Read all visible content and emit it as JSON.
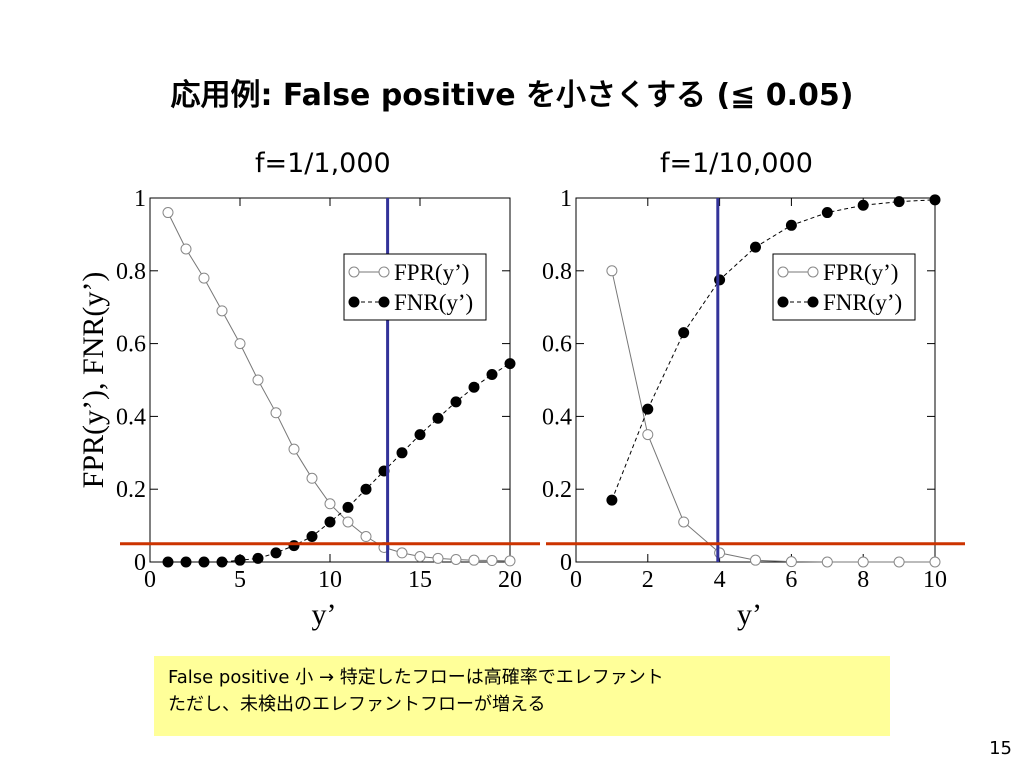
{
  "slide": {
    "title": "応用例:  False positive を小さくする (≦ 0.05)",
    "note_line1": "False positive 小 → 特定したフローは高確率でエレファント",
    "note_line2": "ただし、未検出のエレファントフローが増える",
    "page_number": "15"
  },
  "colors": {
    "threshold_line": "#cc3300",
    "cutoff_line": "#333399",
    "fpr_marker": "#888888",
    "fnr_marker": "#000000"
  },
  "chart_data": [
    {
      "type": "line",
      "title": "f=1/1,000",
      "xlabel": "y’",
      "ylabel": "FPR(y’),  FNR(y’)",
      "xlim": [
        0,
        20
      ],
      "ylim": [
        0,
        1
      ],
      "xticks": [
        0,
        5,
        10,
        15,
        20
      ],
      "yticks": [
        0,
        0.2,
        0.4,
        0.6,
        0.8,
        1
      ],
      "ytick_labels": [
        "0",
        "0.2",
        "0.4",
        "0.6",
        "0.8",
        "1"
      ],
      "legend_position": "top-right",
      "vertical_line_x": 13.2,
      "horizontal_line_y": 0.05,
      "series": [
        {
          "name": "FPR(y’)",
          "marker": "open-circle",
          "line": "solid",
          "x": [
            1,
            2,
            3,
            4,
            5,
            6,
            7,
            8,
            9,
            10,
            11,
            12,
            13,
            14,
            15,
            16,
            17,
            18,
            19,
            20
          ],
          "y": [
            0.96,
            0.86,
            0.78,
            0.69,
            0.6,
            0.5,
            0.41,
            0.31,
            0.23,
            0.16,
            0.11,
            0.07,
            0.04,
            0.025,
            0.015,
            0.01,
            0.007,
            0.005,
            0.004,
            0.003
          ]
        },
        {
          "name": "FNR(y’)",
          "marker": "filled-circle",
          "line": "dashed",
          "x": [
            1,
            2,
            3,
            4,
            5,
            6,
            7,
            8,
            9,
            10,
            11,
            12,
            13,
            14,
            15,
            16,
            17,
            18,
            19,
            20
          ],
          "y": [
            0,
            0,
            0,
            0,
            0.005,
            0.01,
            0.025,
            0.045,
            0.07,
            0.11,
            0.15,
            0.2,
            0.25,
            0.3,
            0.35,
            0.395,
            0.44,
            0.48,
            0.515,
            0.545
          ]
        }
      ]
    },
    {
      "type": "line",
      "title": "f=1/10,000",
      "xlabel": "y’",
      "ylabel": "",
      "xlim": [
        0,
        10
      ],
      "ylim": [
        0,
        1
      ],
      "xticks": [
        0,
        2,
        4,
        6,
        8,
        10
      ],
      "yticks": [
        0,
        0.2,
        0.4,
        0.6,
        0.8,
        1
      ],
      "ytick_labels": [
        "0",
        "0.2",
        "0.4",
        "0.6",
        "0.8",
        "1"
      ],
      "legend_position": "top-right",
      "vertical_line_x": 3.95,
      "horizontal_line_y": 0.05,
      "series": [
        {
          "name": "FPR(y’)",
          "marker": "open-circle",
          "line": "solid",
          "x": [
            1,
            2,
            3,
            4,
            5,
            6,
            7,
            8,
            9,
            10
          ],
          "y": [
            0.8,
            0.35,
            0.11,
            0.025,
            0.005,
            0.001,
            0,
            0,
            0,
            0
          ]
        },
        {
          "name": "FNR(y’)",
          "marker": "filled-circle",
          "line": "dashed",
          "x": [
            1,
            2,
            3,
            4,
            5,
            6,
            7,
            8,
            9,
            10
          ],
          "y": [
            0.17,
            0.42,
            0.63,
            0.775,
            0.865,
            0.925,
            0.96,
            0.98,
            0.99,
            0.995
          ]
        }
      ]
    }
  ]
}
